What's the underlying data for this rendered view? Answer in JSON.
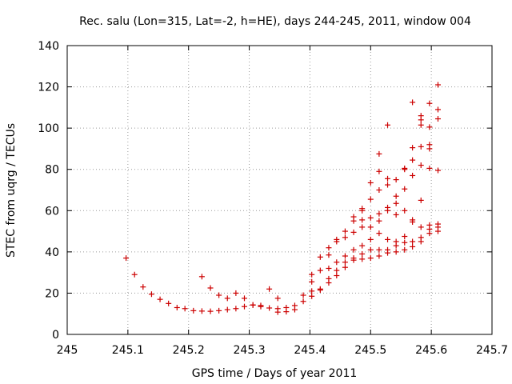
{
  "chart_data": {
    "type": "scatter",
    "title": "Rec. salu (Lon=315, Lat=-2, h=HE), days 244-245, 2011, window 004",
    "xlabel": "GPS time / Days of year 2011",
    "ylabel": "STEC from uqrg / TECUs",
    "xlim": [
      245,
      245.7
    ],
    "ylim": [
      0,
      140
    ],
    "xticks": [
      "245",
      "245.1",
      "245.2",
      "245.3",
      "245.4",
      "245.5",
      "245.6",
      "245.7"
    ],
    "yticks": [
      "0",
      "20",
      "40",
      "60",
      "80",
      "100",
      "120",
      "140"
    ],
    "grid": true,
    "marker": "+",
    "marker_color": "#cc0000",
    "points": [
      [
        245.097,
        37
      ],
      [
        245.111,
        29
      ],
      [
        245.125,
        23
      ],
      [
        245.139,
        19.5
      ],
      [
        245.153,
        17
      ],
      [
        245.167,
        15
      ],
      [
        245.181,
        13
      ],
      [
        245.194,
        12.5
      ],
      [
        245.208,
        11.5
      ],
      [
        245.222,
        11.3
      ],
      [
        245.236,
        11.2
      ],
      [
        245.25,
        11.5
      ],
      [
        245.264,
        12
      ],
      [
        245.278,
        12.5
      ],
      [
        245.292,
        13.5
      ],
      [
        245.306,
        14.3
      ],
      [
        245.319,
        13.5
      ],
      [
        245.333,
        12.8
      ],
      [
        245.347,
        12.5
      ],
      [
        245.361,
        13
      ],
      [
        245.375,
        14
      ],
      [
        245.389,
        16
      ],
      [
        245.403,
        18.5
      ],
      [
        245.417,
        21.5
      ],
      [
        245.431,
        25
      ],
      [
        245.444,
        28.5
      ],
      [
        245.458,
        32.5
      ],
      [
        245.472,
        36
      ],
      [
        245.486,
        36.5
      ],
      [
        245.5,
        37
      ],
      [
        245.514,
        38
      ],
      [
        245.528,
        39.5
      ],
      [
        245.542,
        40
      ],
      [
        245.556,
        41
      ],
      [
        245.569,
        42.5
      ],
      [
        245.583,
        45
      ],
      [
        245.597,
        49
      ],
      [
        245.611,
        50
      ],
      [
        245.222,
        28
      ],
      [
        245.236,
        22.5
      ],
      [
        245.25,
        19
      ],
      [
        245.264,
        17.5
      ],
      [
        245.278,
        20
      ],
      [
        245.292,
        17.5
      ],
      [
        245.306,
        14.2
      ],
      [
        245.319,
        14
      ],
      [
        245.333,
        22
      ],
      [
        245.347,
        17.5
      ],
      [
        245.361,
        11
      ],
      [
        245.347,
        10.8
      ],
      [
        245.375,
        12
      ],
      [
        245.389,
        19
      ],
      [
        245.403,
        21
      ],
      [
        245.417,
        22
      ],
      [
        245.431,
        27
      ],
      [
        245.444,
        31
      ],
      [
        245.458,
        35
      ],
      [
        245.472,
        37
      ],
      [
        245.486,
        39
      ],
      [
        245.5,
        41
      ],
      [
        245.514,
        41
      ],
      [
        245.528,
        41
      ],
      [
        245.542,
        43
      ],
      [
        245.556,
        44.5
      ],
      [
        245.569,
        45
      ],
      [
        245.583,
        47
      ],
      [
        245.597,
        51
      ],
      [
        245.611,
        52
      ],
      [
        245.403,
        25.5
      ],
      [
        245.417,
        31
      ],
      [
        245.431,
        32
      ],
      [
        245.444,
        35
      ],
      [
        245.458,
        38
      ],
      [
        245.472,
        41
      ],
      [
        245.486,
        43
      ],
      [
        245.5,
        46
      ],
      [
        245.514,
        49
      ],
      [
        245.528,
        46
      ],
      [
        245.542,
        45
      ],
      [
        245.556,
        47.5
      ],
      [
        245.569,
        54.5
      ],
      [
        245.583,
        52
      ],
      [
        245.597,
        53
      ],
      [
        245.611,
        53.5
      ],
      [
        245.403,
        29
      ],
      [
        245.417,
        37.5
      ],
      [
        245.431,
        38.5
      ],
      [
        245.444,
        45
      ],
      [
        245.458,
        47
      ],
      [
        245.472,
        49.5
      ],
      [
        245.486,
        52
      ],
      [
        245.5,
        52
      ],
      [
        245.514,
        55
      ],
      [
        245.528,
        60
      ],
      [
        245.542,
        58
      ],
      [
        245.556,
        60
      ],
      [
        245.569,
        55.5
      ],
      [
        245.583,
        65
      ],
      [
        245.597,
        80.5
      ],
      [
        245.611,
        79.5
      ],
      [
        245.431,
        42
      ],
      [
        245.444,
        46
      ],
      [
        245.458,
        50
      ],
      [
        245.472,
        55
      ],
      [
        245.486,
        55.5
      ],
      [
        245.5,
        56.5
      ],
      [
        245.514,
        58.5
      ],
      [
        245.528,
        61.5
      ],
      [
        245.542,
        63.5
      ],
      [
        245.556,
        70.5
      ],
      [
        245.569,
        77
      ],
      [
        245.583,
        82
      ],
      [
        245.597,
        90
      ],
      [
        245.611,
        104.5
      ],
      [
        245.472,
        57
      ],
      [
        245.486,
        60
      ],
      [
        245.5,
        65.5
      ],
      [
        245.514,
        70
      ],
      [
        245.528,
        72.5
      ],
      [
        245.542,
        67
      ],
      [
        245.556,
        80.5
      ],
      [
        245.569,
        84.5
      ],
      [
        245.583,
        91
      ],
      [
        245.597,
        92
      ],
      [
        245.611,
        109
      ],
      [
        245.486,
        61
      ],
      [
        245.5,
        73.5
      ],
      [
        245.514,
        79
      ],
      [
        245.528,
        75.5
      ],
      [
        245.542,
        75
      ],
      [
        245.556,
        80
      ],
      [
        245.569,
        90.5
      ],
      [
        245.583,
        101.5
      ],
      [
        245.597,
        100.5
      ],
      [
        245.514,
        87.5
      ],
      [
        245.528,
        101.5
      ],
      [
        245.569,
        112.5
      ],
      [
        245.583,
        104
      ],
      [
        245.583,
        106
      ],
      [
        245.597,
        112
      ],
      [
        245.611,
        121
      ]
    ]
  }
}
